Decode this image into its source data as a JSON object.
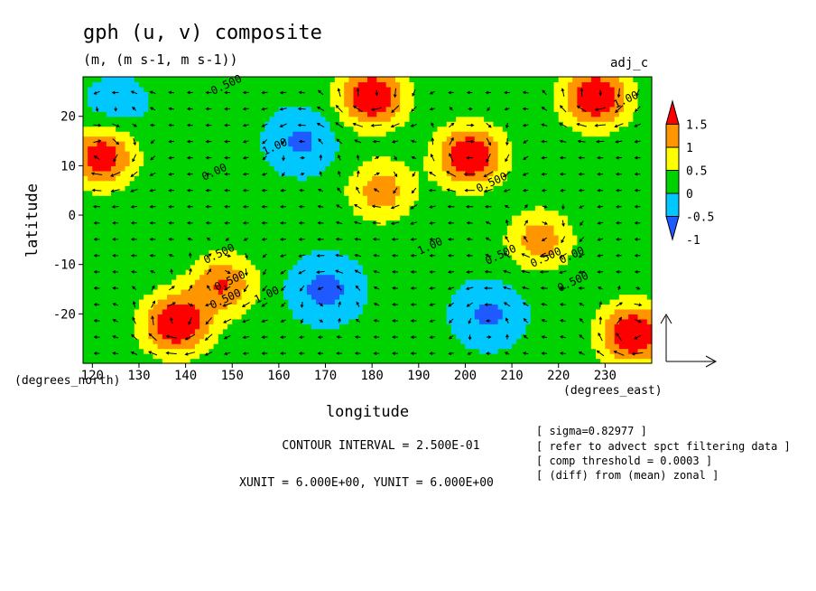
{
  "title": "gph (u, v) composite",
  "subtitle": "(m, (m s-1, m s-1))",
  "tag": "adj_c",
  "chart_data": {
    "type": "heatmap",
    "overlay": "vector",
    "xlabel": "longitude",
    "ylabel": "latitude",
    "x_unit": "(degrees_east)",
    "y_unit": "(degrees_north)",
    "xlim": [
      118,
      240
    ],
    "ylim": [
      -30,
      28
    ],
    "x_ticks": [
      120,
      130,
      140,
      150,
      160,
      170,
      180,
      190,
      200,
      210,
      220,
      230
    ],
    "y_ticks": [
      20,
      10,
      0,
      -10,
      -20
    ],
    "colorbar": {
      "levels": [
        -1,
        -0.5,
        0,
        0.5,
        1,
        1.5
      ],
      "labels": [
        "1.5",
        "1",
        "0.5",
        "0",
        "-0.5",
        "-1"
      ],
      "colors": [
        "#1e5aff",
        "#00c8ff",
        "#00d200",
        "#ffff00",
        "#ff9600",
        "#ff0000"
      ]
    },
    "contour_interval": "CONTOUR INTERVAL = 2.500E-01",
    "vector_units": "XUNIT = 6.000E+00, YUNIT = 6.000E+00",
    "contour_labels": [
      "0.500",
      "1.00",
      "0.00",
      "0.500",
      "0.500",
      "1.00",
      "0.500",
      "0.500",
      "1.00",
      "1.00",
      "0.500",
      "0.500",
      "0.00",
      "0.500"
    ],
    "features": [
      {
        "lon": 138,
        "lat": -22,
        "value": 1.6
      },
      {
        "lon": 148,
        "lat": -14,
        "value": 1.0
      },
      {
        "lon": 180,
        "lat": 24,
        "value": 1.6
      },
      {
        "lon": 201,
        "lat": 12,
        "value": 1.6
      },
      {
        "lon": 228,
        "lat": 24,
        "value": 1.6
      },
      {
        "lon": 236,
        "lat": -24,
        "value": 1.6
      },
      {
        "lon": 122,
        "lat": 12,
        "value": 1.4
      },
      {
        "lon": 216,
        "lat": -5,
        "value": 0.8
      },
      {
        "lon": 182,
        "lat": 5,
        "value": 0.8
      },
      {
        "lon": 170,
        "lat": -15,
        "value": -1.2
      },
      {
        "lon": 165,
        "lat": 15,
        "value": -1.1
      },
      {
        "lon": 125,
        "lat": 22,
        "value": -0.8
      },
      {
        "lon": 205,
        "lat": -20,
        "value": -1.1
      }
    ]
  },
  "annotations": [
    "[ sigma=0.82977 ]",
    "[ refer to advect spct filtering data ]",
    "[ comp threshold = 0.0003 ]",
    "[ (diff) from (mean) zonal ]"
  ]
}
